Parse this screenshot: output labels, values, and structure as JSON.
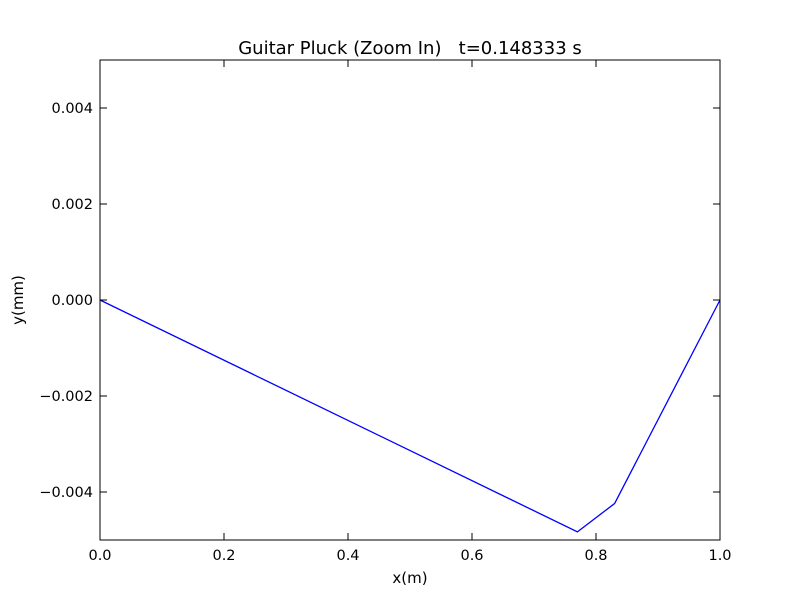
{
  "chart_data": {
    "type": "line",
    "title": "Guitar Pluck (Zoom In)   t=0.148333 s",
    "xlabel": "x(m)",
    "ylabel": "y(mm)",
    "xlim": [
      0.0,
      1.0
    ],
    "ylim": [
      -0.005,
      0.005
    ],
    "x_ticks": [
      0.0,
      0.2,
      0.4,
      0.6,
      0.8,
      1.0
    ],
    "x_tick_labels": [
      "0.0",
      "0.2",
      "0.4",
      "0.6",
      "0.8",
      "1.0"
    ],
    "y_ticks": [
      -0.004,
      -0.002,
      0.0,
      0.002,
      0.004
    ],
    "y_tick_labels": [
      "−0.004",
      "−0.002",
      "0.000",
      "0.002",
      "0.004"
    ],
    "grid": false,
    "series": [
      {
        "color": "#0000ff",
        "x": [
          0.0,
          0.77,
          0.83,
          1.0
        ],
        "y": [
          0.0,
          -0.00483,
          -0.00424,
          0.0
        ]
      }
    ]
  }
}
